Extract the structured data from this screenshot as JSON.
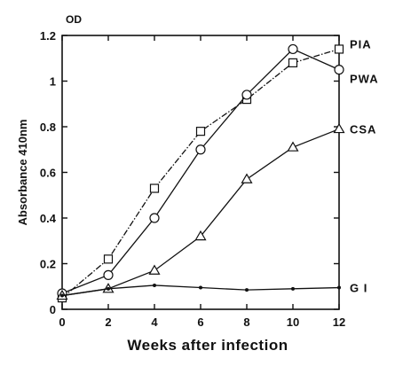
{
  "chart_data": {
    "type": "line",
    "title": "",
    "xlabel": "Weeks after infection",
    "ylabel": "Absorbance 410nm",
    "y_unit_label": "OD",
    "xlim": [
      0,
      12
    ],
    "ylim": [
      0,
      1.2
    ],
    "x_ticks": [
      0,
      2,
      4,
      6,
      8,
      10,
      12
    ],
    "y_ticks": [
      0,
      0.2,
      0.4,
      0.6,
      0.8,
      1,
      1.2
    ],
    "y_tick_labels": [
      "0",
      "0.2",
      "0.4",
      "0.6",
      "0.8",
      "1",
      "1.2"
    ],
    "grid": false,
    "legend": "series labels at right end of lines",
    "x": [
      0,
      2,
      4,
      6,
      8,
      10,
      12
    ],
    "series": [
      {
        "name": "PIA",
        "marker": "square",
        "line": "dash-dot",
        "values": [
          0.05,
          0.22,
          0.53,
          0.78,
          0.92,
          1.08,
          1.14
        ]
      },
      {
        "name": "PWA",
        "marker": "circle",
        "line": "solid",
        "values": [
          0.07,
          0.15,
          0.4,
          0.7,
          0.94,
          1.14,
          1.05
        ]
      },
      {
        "name": "CSA",
        "marker": "triangle",
        "line": "solid",
        "values": [
          0.06,
          0.09,
          0.17,
          0.32,
          0.57,
          0.71,
          0.79
        ]
      },
      {
        "name": "G I",
        "marker": "dot",
        "line": "solid",
        "values": [
          0.06,
          0.09,
          0.105,
          0.095,
          0.085,
          0.09,
          0.095
        ]
      }
    ]
  }
}
